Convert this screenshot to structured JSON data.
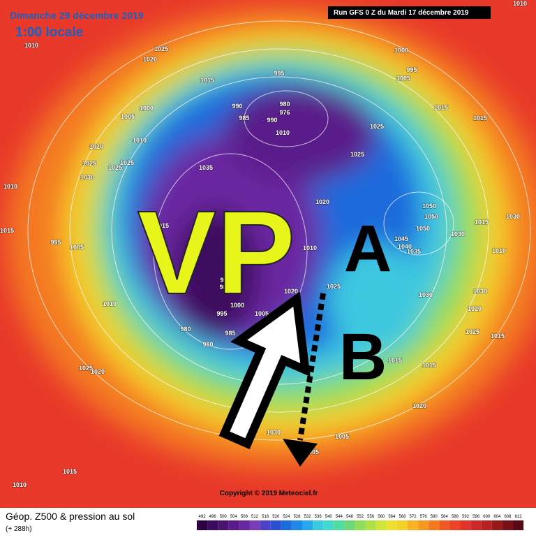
{
  "header": {
    "date": "Dimanche 29 décembre 2019",
    "time": "1:00 locale",
    "run": "Run GFS 0 Z du Mardi 17 décembre 2019"
  },
  "annotations": {
    "vortex": "VP",
    "high": "A",
    "low": "B"
  },
  "pressure_labels": [
    "1010",
    "1025",
    "1020",
    "1015",
    "995",
    "1000",
    "995",
    "1005",
    "1015",
    "1015",
    "1025",
    "1025",
    "990",
    "980",
    "976",
    "985",
    "990",
    "1010",
    "1000",
    "1005",
    "1010",
    "1020",
    "1025",
    "1025",
    "1025",
    "1030",
    "1010",
    "1035",
    "1020",
    "1015",
    "1015",
    "995",
    "1005",
    "1010",
    "1050",
    "1050",
    "1050",
    "1045",
    "1040",
    "1035",
    "1030",
    "1015",
    "1030",
    "1010",
    "975",
    "980",
    "1025",
    "1020",
    "1000",
    "995",
    "1005",
    "1010",
    "980",
    "985",
    "980",
    "1030",
    "1030",
    "1020",
    "1025",
    "1015",
    "1015",
    "1015",
    "1030",
    "1025",
    "1020",
    "1020",
    "1030",
    "1005",
    "1005",
    "1015",
    "1010",
    "1010"
  ],
  "copyright": "Copyright © 2019 Meteociel.fr",
  "legend": {
    "title": "Géop. Z500 & pression au sol",
    "lead": "(+ 288h)",
    "scale": [
      492,
      496,
      500,
      504,
      508,
      512,
      516,
      520,
      524,
      528,
      532,
      536,
      540,
      544,
      548,
      552,
      556,
      560,
      564,
      568,
      572,
      576,
      580,
      584,
      588,
      592,
      596,
      600,
      604,
      608,
      612
    ],
    "colors": [
      "#2a0040",
      "#3c0a5e",
      "#4b1470",
      "#5a1a8a",
      "#6a28a0",
      "#7a3cb8",
      "#5040c8",
      "#2850d0",
      "#1e6bdc",
      "#1e8ae8",
      "#28a8ec",
      "#3cc8e0",
      "#40d8c8",
      "#50dca0",
      "#6ed878",
      "#8ede5a",
      "#aee048",
      "#cfe43a",
      "#ece032",
      "#f5d02a",
      "#f6b424",
      "#f59a20",
      "#f47a20",
      "#f05a22",
      "#ec4226",
      "#e0342a",
      "#cc2a2a",
      "#b42222",
      "#961a1a",
      "#78121a",
      "#5a0a14"
    ]
  }
}
